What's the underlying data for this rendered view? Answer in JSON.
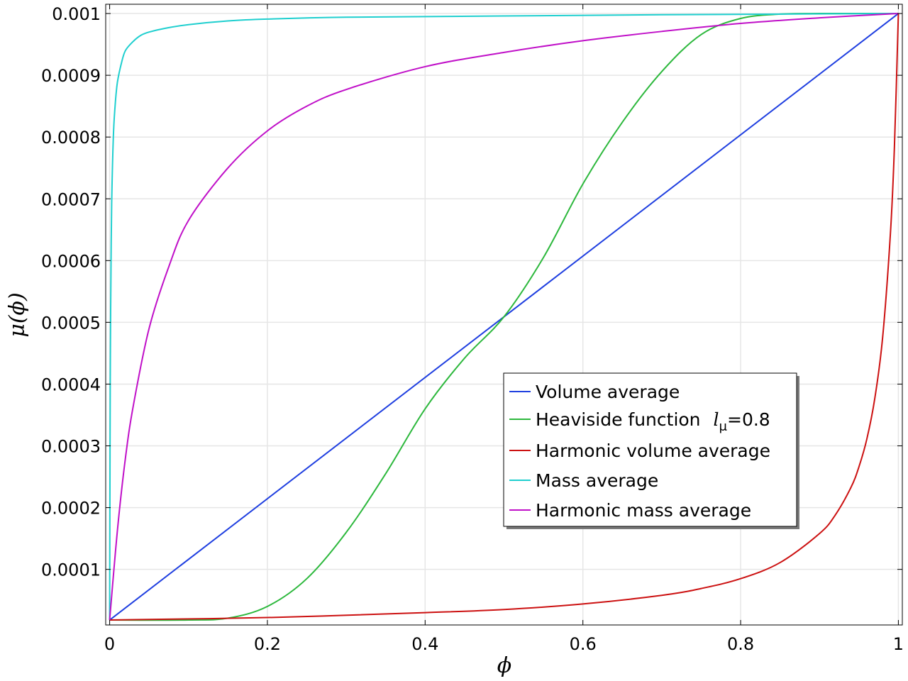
{
  "chart_data": {
    "type": "line",
    "title": "",
    "xlabel": "ϕ",
    "ylabel": "μ(ϕ)",
    "xlim": [
      -0.005,
      1.005
    ],
    "ylim": [
      1e-05,
      0.001015
    ],
    "grid": true,
    "legend_position": "center-right",
    "x_ticks": [
      {
        "v": 0,
        "label": "0"
      },
      {
        "v": 0.2,
        "label": "0.2"
      },
      {
        "v": 0.4,
        "label": "0.4"
      },
      {
        "v": 0.6,
        "label": "0.6"
      },
      {
        "v": 0.8,
        "label": "0.8"
      },
      {
        "v": 1,
        "label": "1"
      }
    ],
    "y_ticks": [
      {
        "v": 0.0001,
        "label": "0.0001"
      },
      {
        "v": 0.0002,
        "label": "0.0002"
      },
      {
        "v": 0.0003,
        "label": "0.0003"
      },
      {
        "v": 0.0004,
        "label": "0.0004"
      },
      {
        "v": 0.0005,
        "label": "0.0005"
      },
      {
        "v": 0.0006,
        "label": "0.0006"
      },
      {
        "v": 0.0007,
        "label": "0.0007"
      },
      {
        "v": 0.0008,
        "label": "0.0008"
      },
      {
        "v": 0.0009,
        "label": "0.0009"
      },
      {
        "v": 0.001,
        "label": "0.001"
      }
    ],
    "series": [
      {
        "name": "Volume average",
        "color": "#1f3fe0",
        "x": [
          0,
          1
        ],
        "y": [
          1.8e-05,
          0.001
        ]
      },
      {
        "name": "Heaviside function",
        "name_suffix_symbol": "l",
        "name_suffix_subscript": "μ",
        "name_suffix_value": "=0.8",
        "color": "#2db83d",
        "x": [
          0,
          0.1,
          0.15,
          0.2,
          0.25,
          0.3,
          0.35,
          0.4,
          0.45,
          0.5,
          0.55,
          0.6,
          0.65,
          0.7,
          0.75,
          0.8,
          0.85,
          0.9,
          1
        ],
        "y": [
          1.8e-05,
          1.8e-05,
          2.1e-05,
          4e-05,
          8.5e-05,
          0.00016,
          0.000255,
          0.00036,
          0.000442,
          0.000509,
          0.000605,
          0.000724,
          0.000824,
          0.000906,
          0.000966,
          0.000992,
          0.000999,
          0.001,
          0.001
        ]
      },
      {
        "name": "Harmonic volume average",
        "color": "#cc1111",
        "x": [
          0,
          0.2,
          0.4,
          0.5,
          0.6,
          0.7,
          0.75,
          0.8,
          0.85,
          0.9,
          0.92,
          0.94,
          0.95,
          0.96,
          0.97,
          0.98,
          0.99,
          0.995,
          1
        ],
        "y": [
          1.8e-05,
          2.2e-05,
          3e-05,
          3.5e-05,
          4.4e-05,
          5.8e-05,
          6.9e-05,
          8.5e-05,
          0.000111,
          0.000158,
          0.000188,
          0.000233,
          0.000266,
          0.000311,
          0.000376,
          0.000475,
          0.000646,
          0.000785,
          0.001
        ]
      },
      {
        "name": "Mass average",
        "color": "#1fcfcf",
        "x": [
          0,
          0.0005,
          0.001,
          0.002,
          0.003,
          0.005,
          0.0075,
          0.01,
          0.015,
          0.02,
          0.03,
          0.04,
          0.05,
          0.07,
          0.1,
          0.15,
          0.2,
          0.3,
          0.5,
          0.7,
          1
        ],
        "y": [
          1.8e-05,
          0.00029,
          0.00046,
          0.00063,
          0.00072,
          0.00081,
          0.00086,
          0.00089,
          0.00092,
          0.00094,
          0.000955,
          0.000965,
          0.00097,
          0.000976,
          0.000982,
          0.000988,
          0.000991,
          0.000994,
          0.000996,
          0.000998,
          0.001
        ]
      },
      {
        "name": "Harmonic mass average",
        "color": "#c010c8",
        "x": [
          0,
          0.01,
          0.02,
          0.03,
          0.05,
          0.075,
          0.1,
          0.15,
          0.2,
          0.25,
          0.3,
          0.4,
          0.5,
          0.6,
          0.7,
          0.8,
          0.9,
          1
        ],
        "y": [
          1.8e-05,
          0.000165,
          0.00028,
          0.000365,
          0.00049,
          0.00059,
          0.000665,
          0.00075,
          0.00081,
          0.00085,
          0.000877,
          0.000914,
          0.000937,
          0.000956,
          0.000971,
          0.000984,
          0.000993,
          0.001
        ]
      }
    ]
  }
}
